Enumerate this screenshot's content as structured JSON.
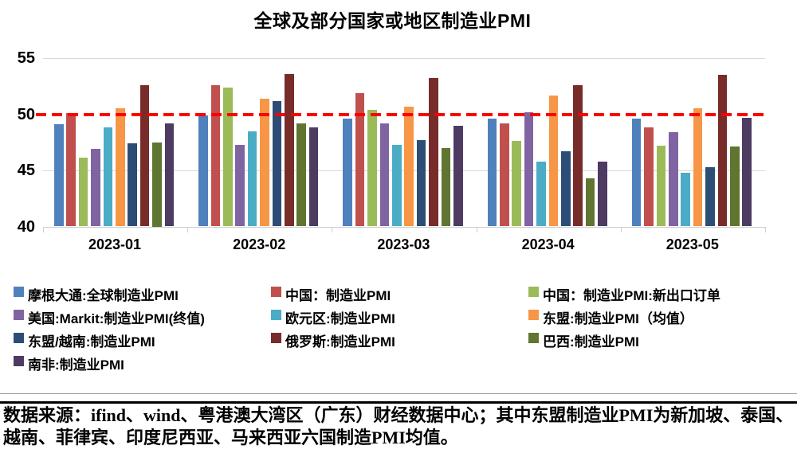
{
  "title": "全球及部分国家或地区制造业PMI",
  "chart_data": {
    "type": "bar",
    "title": "全球及部分国家或地区制造业PMI",
    "categories": [
      "2023-01",
      "2023-02",
      "2023-03",
      "2023-04",
      "2023-05"
    ],
    "series": [
      {
        "name": "摩根大通:全球制造业PMI",
        "color": "#4F81BD",
        "values": [
          49.1,
          49.9,
          49.6,
          49.6,
          49.6
        ]
      },
      {
        "name": "中国：制造业PMI",
        "color": "#C0504D",
        "values": [
          50.1,
          52.6,
          51.9,
          49.2,
          48.8
        ]
      },
      {
        "name": "中国：制造业PMI:新出口订单",
        "color": "#9BBB59",
        "values": [
          46.1,
          52.4,
          50.4,
          47.6,
          47.2
        ]
      },
      {
        "name": "美国:Markit:制造业PMI(终值)",
        "color": "#8064A2",
        "values": [
          46.9,
          47.3,
          49.2,
          50.2,
          48.4
        ]
      },
      {
        "name": "欧元区:制造业PMI",
        "color": "#4BACC6",
        "values": [
          48.8,
          48.5,
          47.3,
          45.8,
          44.8
        ]
      },
      {
        "name": "东盟:制造业PMI（均值）",
        "color": "#F79646",
        "values": [
          50.5,
          51.4,
          50.7,
          51.7,
          50.5
        ]
      },
      {
        "name": "东盟/越南:制造业PMI",
        "color": "#2C4D75",
        "values": [
          47.4,
          51.2,
          47.7,
          46.7,
          45.3
        ]
      },
      {
        "name": "俄罗斯:制造业PMI",
        "color": "#772C2A",
        "values": [
          52.6,
          53.6,
          53.2,
          52.6,
          53.5
        ]
      },
      {
        "name": "巴西:制造业PMI",
        "color": "#5F7530",
        "values": [
          47.5,
          49.2,
          47.0,
          44.3,
          47.1
        ]
      },
      {
        "name": "南非:制造业PMI",
        "color": "#4D3B62",
        "values": [
          49.2,
          48.8,
          49.0,
          45.8,
          49.7
        ]
      }
    ],
    "xlabel": "",
    "ylabel": "",
    "ylim": [
      40,
      55
    ],
    "yticks": [
      40,
      45,
      50,
      55
    ],
    "grid": true,
    "gridline_color": "#d9d9d9",
    "reference_line": {
      "value": 50,
      "color": "#FF0000",
      "style": "dashed"
    },
    "legend_position": "bottom"
  },
  "footer": {
    "source_note": "数据来源：ifind、wind、粤港澳大湾区（广东）财经数据中心；其中东盟制造业PMI为新加坡、泰国、越南、菲律宾、印度尼西亚、马来西亚六国制造PMI均值。"
  }
}
